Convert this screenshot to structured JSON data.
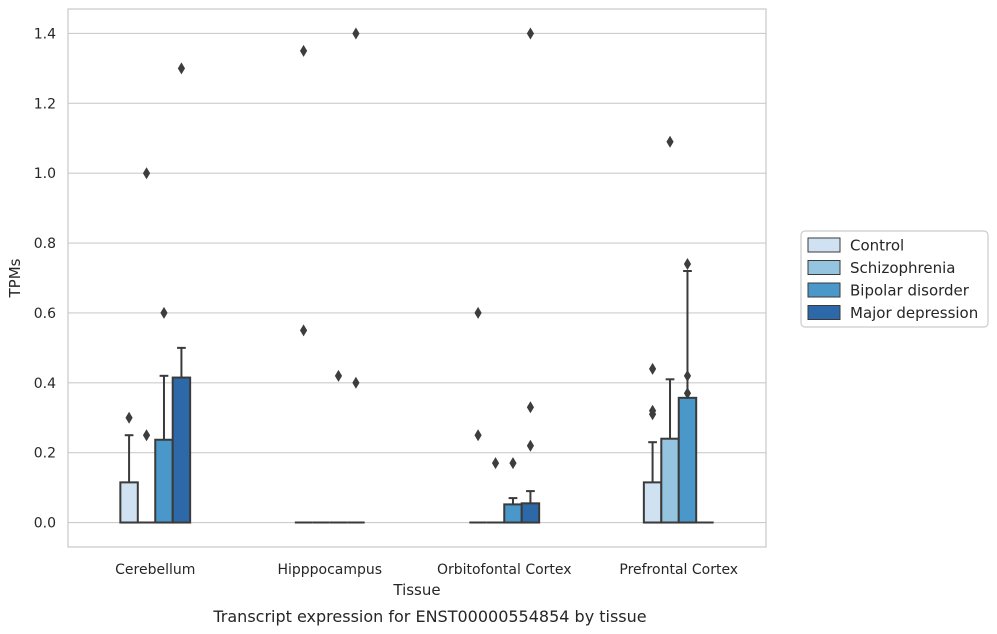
{
  "caption": "Transcript expression for ENST00000554854 by tissue",
  "chart_data": {
    "type": "box",
    "xlabel": "Tissue",
    "ylabel": "TPMs",
    "ylim": [
      -0.07,
      1.47
    ],
    "yticks": [
      0.0,
      0.2,
      0.4,
      0.6,
      0.8,
      1.0,
      1.2,
      1.4
    ],
    "ytick_labels": [
      "0.0",
      "0.2",
      "0.4",
      "0.6",
      "0.8",
      "1.0",
      "1.2",
      "1.4"
    ],
    "grid": "horizontal",
    "legend_position": "right",
    "categories": [
      "Cerebellum",
      "Hipppocampus",
      "Orbitofontal Cortex",
      "Prefrontal Cortex"
    ],
    "series": [
      {
        "name": "Control",
        "color": "#d0e1f2",
        "boxes": [
          {
            "q1": 0.0,
            "median": 0.0,
            "q3": 0.115,
            "whisker_low": 0.0,
            "whisker_high": 0.25,
            "outliers": [
              0.3
            ]
          },
          {
            "q1": 0.0,
            "median": 0.0,
            "q3": 0.0,
            "whisker_low": 0.0,
            "whisker_high": 0.0,
            "outliers": [
              0.55,
              1.35
            ]
          },
          {
            "q1": 0.0,
            "median": 0.0,
            "q3": 0.0,
            "whisker_low": 0.0,
            "whisker_high": 0.0,
            "outliers": [
              0.25,
              0.6
            ]
          },
          {
            "q1": 0.0,
            "median": 0.0,
            "q3": 0.115,
            "whisker_low": 0.0,
            "whisker_high": 0.23,
            "outliers": [
              0.31,
              0.32,
              0.44
            ]
          }
        ]
      },
      {
        "name": "Schizophrenia",
        "color": "#94c4df",
        "boxes": [
          {
            "q1": 0.0,
            "median": 0.0,
            "q3": 0.0,
            "whisker_low": 0.0,
            "whisker_high": 0.0,
            "outliers": [
              0.25,
              1.0
            ]
          },
          {
            "q1": 0.0,
            "median": 0.0,
            "q3": 0.0,
            "whisker_low": 0.0,
            "whisker_high": 0.0,
            "outliers": []
          },
          {
            "q1": 0.0,
            "median": 0.0,
            "q3": 0.0,
            "whisker_low": 0.0,
            "whisker_high": 0.0,
            "outliers": [
              0.17
            ]
          },
          {
            "q1": 0.0,
            "median": 0.0,
            "q3": 0.24,
            "whisker_low": 0.0,
            "whisker_high": 0.41,
            "outliers": [
              1.09
            ]
          }
        ]
      },
      {
        "name": "Bipolar disorder",
        "color": "#4a98c9",
        "boxes": [
          {
            "q1": 0.0,
            "median": 0.0,
            "q3": 0.237,
            "whisker_low": 0.0,
            "whisker_high": 0.42,
            "outliers": [
              0.6
            ]
          },
          {
            "q1": 0.0,
            "median": 0.0,
            "q3": 0.0,
            "whisker_low": 0.0,
            "whisker_high": 0.0,
            "outliers": [
              0.42
            ]
          },
          {
            "q1": 0.0,
            "median": 0.0,
            "q3": 0.052,
            "whisker_low": 0.0,
            "whisker_high": 0.07,
            "outliers": [
              0.17
            ]
          },
          {
            "q1": 0.0,
            "median": 0.0,
            "q3": 0.357,
            "whisker_low": 0.0,
            "whisker_high": 0.72,
            "outliers": [
              0.37,
              0.42,
              0.74
            ]
          }
        ]
      },
      {
        "name": "Major depression",
        "color": "#2d69a9",
        "boxes": [
          {
            "q1": 0.0,
            "median": 0.0,
            "q3": 0.415,
            "whisker_low": 0.0,
            "whisker_high": 0.5,
            "outliers": [
              1.3
            ]
          },
          {
            "q1": 0.0,
            "median": 0.0,
            "q3": 0.0,
            "whisker_low": 0.0,
            "whisker_high": 0.0,
            "outliers": [
              0.4,
              1.4
            ]
          },
          {
            "q1": 0.0,
            "median": 0.0,
            "q3": 0.055,
            "whisker_low": 0.0,
            "whisker_high": 0.09,
            "outliers": [
              0.22,
              0.33,
              1.4
            ]
          },
          {
            "q1": 0.0,
            "median": 0.0,
            "q3": 0.0,
            "whisker_low": 0.0,
            "whisker_high": 0.0,
            "outliers": []
          }
        ]
      }
    ]
  }
}
